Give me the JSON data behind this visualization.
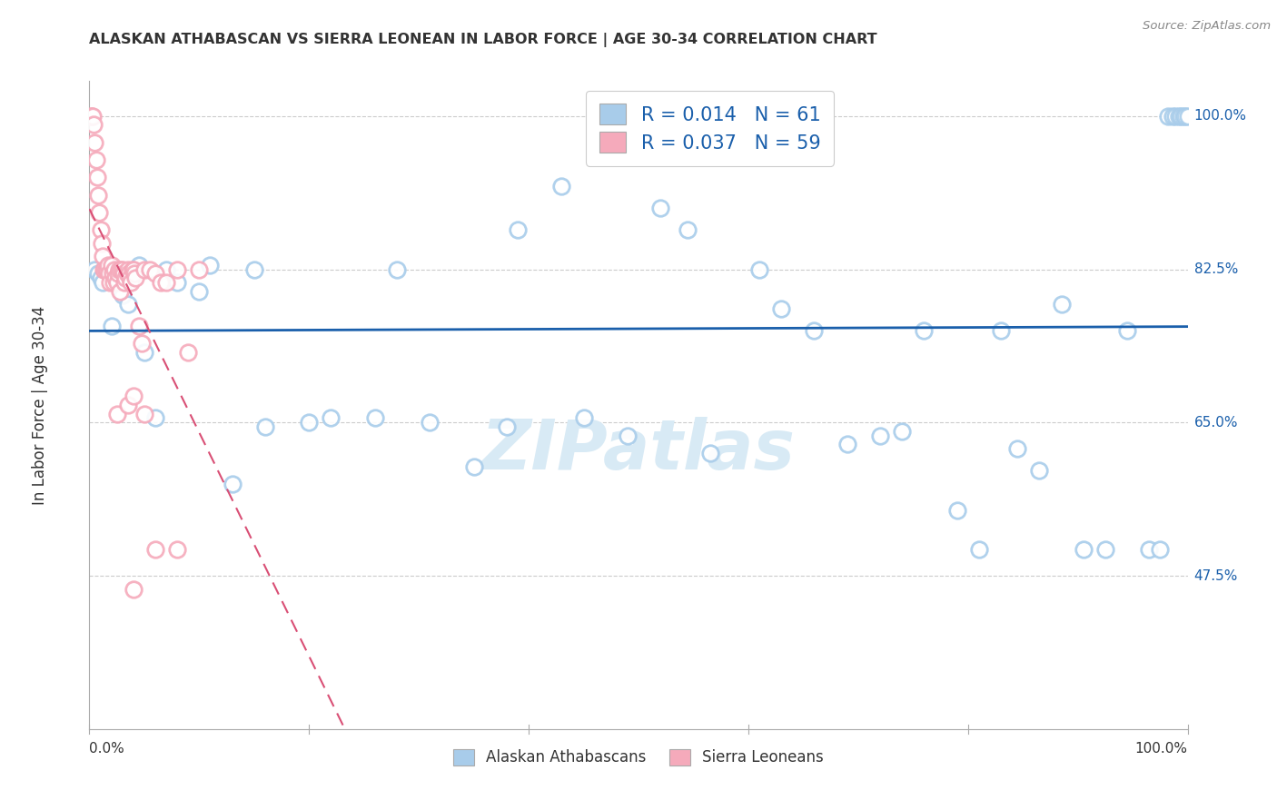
{
  "title": "ALASKAN ATHABASCAN VS SIERRA LEONEAN IN LABOR FORCE | AGE 30-34 CORRELATION CHART",
  "source": "Source: ZipAtlas.com",
  "ylabel": "In Labor Force | Age 30-34",
  "xlim": [
    0.0,
    1.0
  ],
  "ylim": [
    0.3,
    1.04
  ],
  "grid_yticks": [
    1.0,
    0.825,
    0.65,
    0.475
  ],
  "right_labels": {
    "1.0": "100.0%",
    "0.825": "82.5%",
    "0.65": "65.0%",
    "0.475": "47.5%"
  },
  "blue_R": 0.014,
  "blue_N": 61,
  "pink_R": 0.037,
  "pink_N": 59,
  "blue_color": "#A8CCEA",
  "pink_color": "#F5AABB",
  "blue_edge_color": "#6AAAD8",
  "pink_edge_color": "#E8799A",
  "blue_line_color": "#1A5FAB",
  "pink_line_color": "#D94F75",
  "watermark_color": "#D8EAF5",
  "blue_points_x": [
    0.005,
    0.008,
    0.01,
    0.012,
    0.015,
    0.018,
    0.02,
    0.025,
    0.03,
    0.035,
    0.04,
    0.045,
    0.05,
    0.06,
    0.07,
    0.08,
    0.1,
    0.11,
    0.13,
    0.15,
    0.16,
    0.2,
    0.22,
    0.26,
    0.28,
    0.31,
    0.35,
    0.38,
    0.39,
    0.43,
    0.45,
    0.49,
    0.52,
    0.545,
    0.565,
    0.61,
    0.63,
    0.66,
    0.69,
    0.72,
    0.74,
    0.76,
    0.79,
    0.81,
    0.83,
    0.845,
    0.865,
    0.885,
    0.905,
    0.925,
    0.945,
    0.965,
    0.975,
    0.982,
    0.986,
    0.989,
    0.992,
    0.994,
    0.996,
    0.998,
    1.0
  ],
  "blue_points_y": [
    0.825,
    0.82,
    0.815,
    0.81,
    0.825,
    0.83,
    0.76,
    0.82,
    0.795,
    0.785,
    0.82,
    0.83,
    0.73,
    0.655,
    0.825,
    0.81,
    0.8,
    0.83,
    0.58,
    0.825,
    0.645,
    0.65,
    0.655,
    0.655,
    0.825,
    0.65,
    0.6,
    0.645,
    0.87,
    0.92,
    0.655,
    0.635,
    0.895,
    0.87,
    0.615,
    0.825,
    0.78,
    0.755,
    0.625,
    0.635,
    0.64,
    0.755,
    0.55,
    0.505,
    0.755,
    0.62,
    0.595,
    0.785,
    0.505,
    0.505,
    0.755,
    0.505,
    0.505,
    1.0,
    1.0,
    1.0,
    1.0,
    1.0,
    1.0,
    1.0,
    1.0
  ],
  "pink_points_x": [
    0.001,
    0.002,
    0.003,
    0.004,
    0.005,
    0.006,
    0.007,
    0.008,
    0.009,
    0.01,
    0.011,
    0.012,
    0.013,
    0.014,
    0.015,
    0.016,
    0.017,
    0.018,
    0.019,
    0.02,
    0.021,
    0.022,
    0.023,
    0.024,
    0.025,
    0.026,
    0.027,
    0.028,
    0.029,
    0.03,
    0.031,
    0.032,
    0.033,
    0.034,
    0.035,
    0.036,
    0.037,
    0.038,
    0.039,
    0.04,
    0.041,
    0.042,
    0.045,
    0.048,
    0.05,
    0.055,
    0.06,
    0.065,
    0.07,
    0.08,
    0.09,
    0.1,
    0.025,
    0.035,
    0.04,
    0.05,
    0.06,
    0.08,
    0.04
  ],
  "pink_points_y": [
    1.0,
    1.0,
    1.0,
    0.99,
    0.97,
    0.95,
    0.93,
    0.91,
    0.89,
    0.87,
    0.855,
    0.84,
    0.825,
    0.825,
    0.825,
    0.825,
    0.83,
    0.82,
    0.81,
    0.83,
    0.82,
    0.81,
    0.825,
    0.815,
    0.81,
    0.82,
    0.825,
    0.8,
    0.825,
    0.825,
    0.82,
    0.81,
    0.815,
    0.82,
    0.825,
    0.82,
    0.815,
    0.81,
    0.825,
    0.825,
    0.82,
    0.815,
    0.76,
    0.74,
    0.825,
    0.825,
    0.82,
    0.81,
    0.81,
    0.825,
    0.73,
    0.825,
    0.66,
    0.67,
    0.68,
    0.66,
    0.505,
    0.505,
    0.46
  ]
}
